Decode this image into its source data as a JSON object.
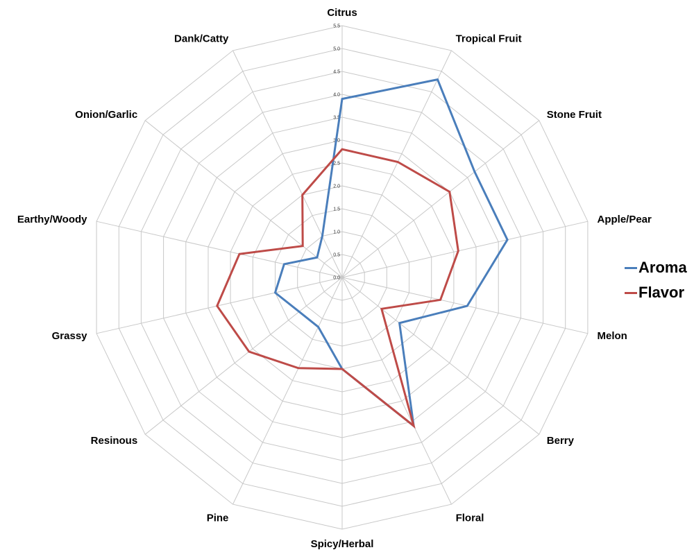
{
  "chart_data": {
    "type": "radar",
    "categories": [
      "Citrus",
      "Tropical Fruit",
      "Stone Fruit",
      "Apple/Pear",
      "Melon",
      "Berry",
      "Floral",
      "Spicy/Herbal",
      "Pine",
      "Resinous",
      "Grassy",
      "Earthy/Woody",
      "Onion/Garlic",
      "Dank/Catty"
    ],
    "rlim": [
      0,
      5.5
    ],
    "ticks": [
      "0.0",
      "0.5",
      "1.0",
      "1.5",
      "2.0",
      "2.5",
      "3.0",
      "3.5",
      "4.0",
      "4.5",
      "5.0",
      "5.5"
    ],
    "grid": true,
    "legend_position": "right",
    "series": [
      {
        "name": "Aroma",
        "color": "#4a7ebb",
        "values": [
          3.9,
          4.8,
          3.7,
          3.7,
          2.8,
          1.6,
          3.6,
          2.0,
          1.2,
          1.2,
          1.5,
          1.3,
          0.7,
          1.0
        ]
      },
      {
        "name": "Flavor",
        "color": "#be4b48",
        "values": [
          2.8,
          2.8,
          3.0,
          2.6,
          2.2,
          1.1,
          3.6,
          2.0,
          2.2,
          2.6,
          2.8,
          2.3,
          1.1,
          2.0
        ]
      }
    ]
  }
}
